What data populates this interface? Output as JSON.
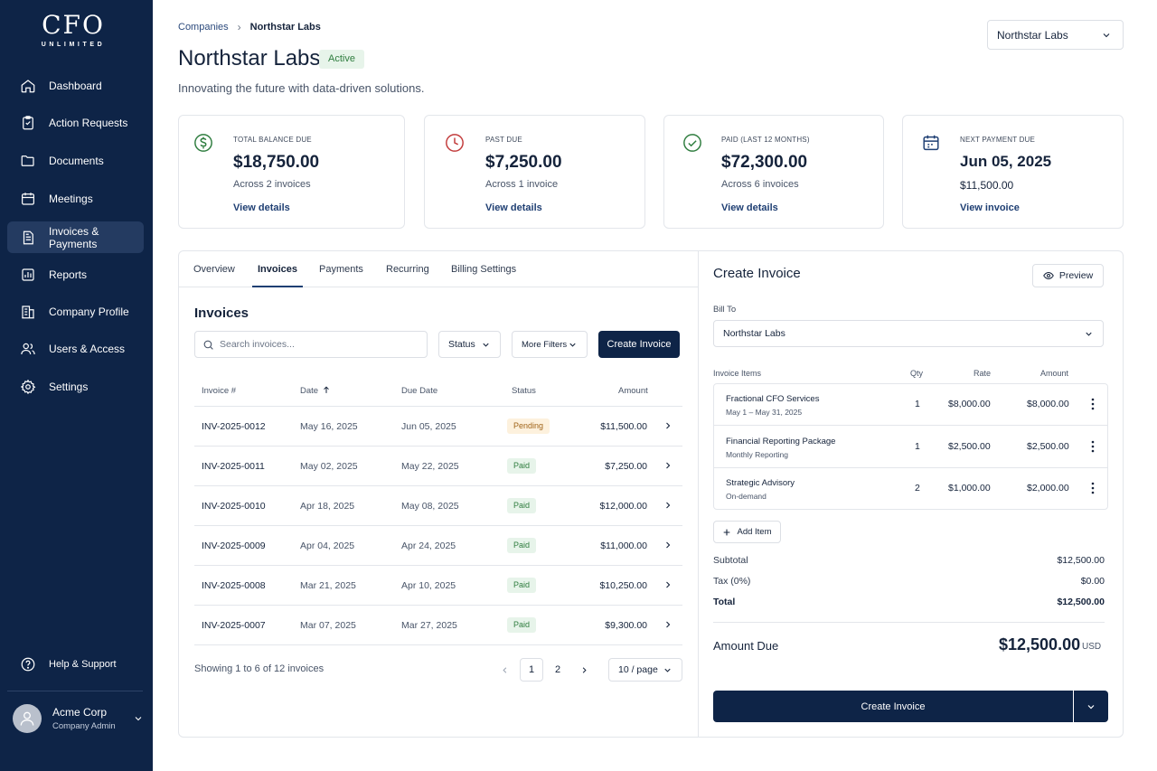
{
  "brand": {
    "name": "CFO",
    "sub": "UNLIMITED"
  },
  "sidebar": {
    "items": [
      {
        "label": "Dashboard",
        "icon": "home-icon"
      },
      {
        "label": "Action Requests",
        "icon": "clipboard-icon"
      },
      {
        "label": "Documents",
        "icon": "folder-icon"
      },
      {
        "label": "Meetings",
        "icon": "calendar-icon"
      },
      {
        "label": "Invoices & Payments",
        "icon": "invoice-icon",
        "active": true
      },
      {
        "label": "Reports",
        "icon": "bar-chart-icon"
      },
      {
        "label": "Company Profile",
        "icon": "building-icon"
      },
      {
        "label": "Users & Access",
        "icon": "users-icon"
      },
      {
        "label": "Settings",
        "icon": "gear-icon"
      }
    ],
    "help": "Help & Support",
    "user": {
      "name": "Acme Corp",
      "role": "Company Admin"
    }
  },
  "header": {
    "breadcrumb": [
      "Companies",
      "Northstar Labs"
    ],
    "company_select": "Northstar Labs",
    "title": "Northstar Labs",
    "status": "Active",
    "subtitle": "Innovating the future with data-driven solutions."
  },
  "cards": [
    {
      "label": "TOTAL BALANCE DUE",
      "value": "$18,750.00",
      "sub": "Across 2 invoices",
      "link": "View details",
      "icon": "dollar-circle-icon",
      "color": "#2f7d3f"
    },
    {
      "label": "PAST DUE",
      "value": "$7,250.00",
      "sub": "Across 1 invoice",
      "link": "View details",
      "icon": "clock-icon",
      "color": "#c23b3b"
    },
    {
      "label": "PAID (LAST 12 MONTHS)",
      "value": "$72,300.00",
      "sub": "Across 6 invoices",
      "link": "View details",
      "icon": "check-circle-icon",
      "color": "#2f7d3f"
    },
    {
      "label": "NEXT PAYMENT DUE",
      "value": "Jun 05, 2025",
      "sub": "$11,500.00",
      "link": "View invoice",
      "icon": "calendar-icon",
      "color": "#1f3f73"
    }
  ],
  "tabs": [
    "Overview",
    "Invoices",
    "Payments",
    "Recurring",
    "Billing Settings"
  ],
  "invoices": {
    "title": "Invoices",
    "search_placeholder": "Search invoices...",
    "status_filter": "Status",
    "more_filters": "More Filters",
    "create_label": "Create Invoice",
    "columns": [
      "Invoice #",
      "Date",
      "Due Date",
      "Status",
      "Amount"
    ],
    "rows": [
      {
        "id": "INV-2025-0012",
        "date": "May 16, 2025",
        "due": "Jun 05, 2025",
        "status": "Pending",
        "amount": "$11,500.00"
      },
      {
        "id": "INV-2025-0011",
        "date": "May 02, 2025",
        "due": "May 22, 2025",
        "status": "Paid",
        "amount": "$7,250.00"
      },
      {
        "id": "INV-2025-0010",
        "date": "Apr 18, 2025",
        "due": "May 08, 2025",
        "status": "Paid",
        "amount": "$12,000.00"
      },
      {
        "id": "INV-2025-0009",
        "date": "Apr 04, 2025",
        "due": "Apr 24, 2025",
        "status": "Paid",
        "amount": "$11,000.00"
      },
      {
        "id": "INV-2025-0008",
        "date": "Mar 21, 2025",
        "due": "Apr 10, 2025",
        "status": "Paid",
        "amount": "$10,250.00"
      },
      {
        "id": "INV-2025-0007",
        "date": "Mar 07, 2025",
        "due": "Mar 27, 2025",
        "status": "Paid",
        "amount": "$9,300.00"
      }
    ],
    "showing": "Showing 1 to 6 of 12 invoices",
    "pages": [
      "1",
      "2"
    ],
    "per_page": "10 / page"
  },
  "create": {
    "title": "Create Invoice",
    "preview": "Preview",
    "bill_to_label": "Bill To",
    "bill_to": "Northstar Labs",
    "item_headers": [
      "Invoice Items",
      "Qty",
      "Rate",
      "Amount"
    ],
    "items": [
      {
        "name": "Fractional CFO Services",
        "desc": "May 1 – May 31, 2025",
        "qty": "1",
        "rate": "$8,000.00",
        "amount": "$8,000.00"
      },
      {
        "name": "Financial Reporting Package",
        "desc": "Monthly Reporting",
        "qty": "1",
        "rate": "$2,500.00",
        "amount": "$2,500.00"
      },
      {
        "name": "Strategic Advisory",
        "desc": "On-demand",
        "qty": "2",
        "rate": "$1,000.00",
        "amount": "$2,000.00"
      }
    ],
    "add_item": "Add Item",
    "subtotal_label": "Subtotal",
    "subtotal": "$12,500.00",
    "tax_label": "Tax (0%)",
    "tax": "$0.00",
    "total_label": "Total",
    "total": "$12,500.00",
    "amount_due_label": "Amount Due",
    "amount_due": "$12,500.00",
    "currency": "USD",
    "submit": "Create Invoice"
  }
}
